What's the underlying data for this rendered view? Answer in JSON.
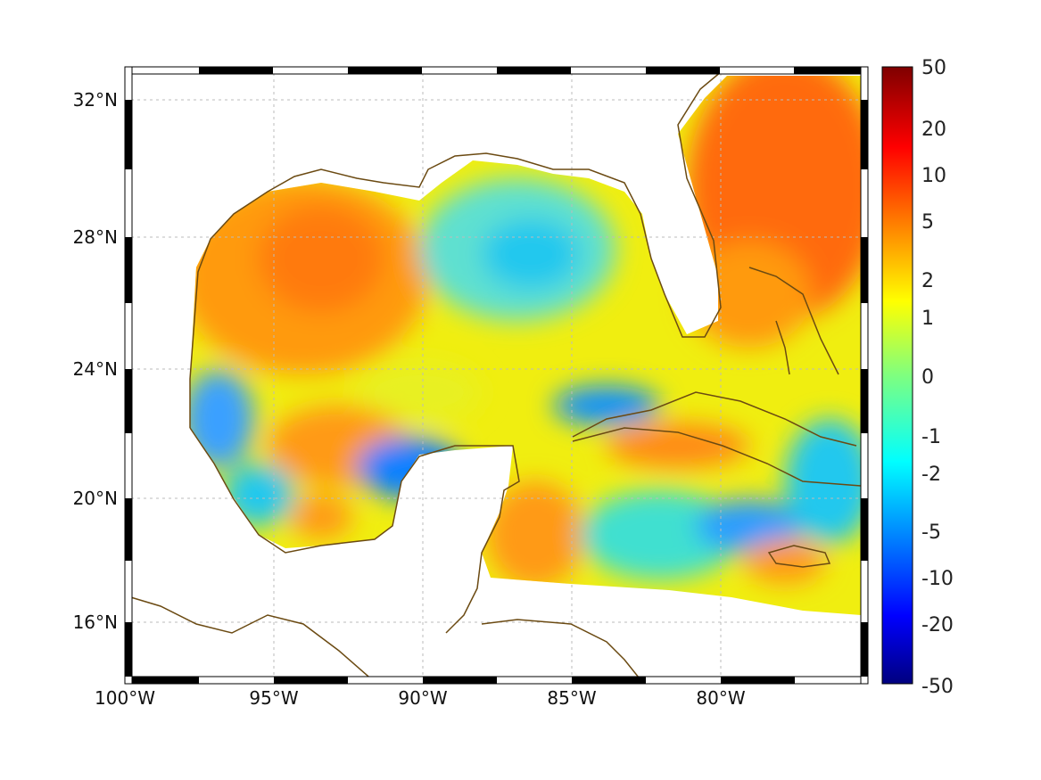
{
  "map": {
    "projection": "mercator-like regional map",
    "region": "Gulf of Mexico and western Caribbean",
    "lon_range": [
      -100,
      -75
    ],
    "lat_range": [
      14.2,
      33
    ],
    "x_ticks": [
      {
        "value": -100,
        "label": "100°W"
      },
      {
        "value": -95,
        "label": "95°W"
      },
      {
        "value": -90,
        "label": "90°W"
      },
      {
        "value": -85,
        "label": "85°W"
      },
      {
        "value": -80,
        "label": "80°W"
      }
    ],
    "y_ticks": [
      {
        "value": 32,
        "label": "32°N"
      },
      {
        "value": 28,
        "label": "28°N"
      },
      {
        "value": 24,
        "label": "24°N"
      },
      {
        "value": 20,
        "label": "20°N"
      },
      {
        "value": 16,
        "label": "16°N"
      }
    ],
    "grid": true,
    "coastline_color": "#6b4a12"
  },
  "colorbar": {
    "ticks": [
      "50",
      "20",
      "10",
      "5",
      "2",
      "1",
      "0",
      "-1",
      "-2",
      "-5",
      "-10",
      "-20",
      "-50"
    ],
    "colormap": "jet",
    "placement": "right"
  }
}
